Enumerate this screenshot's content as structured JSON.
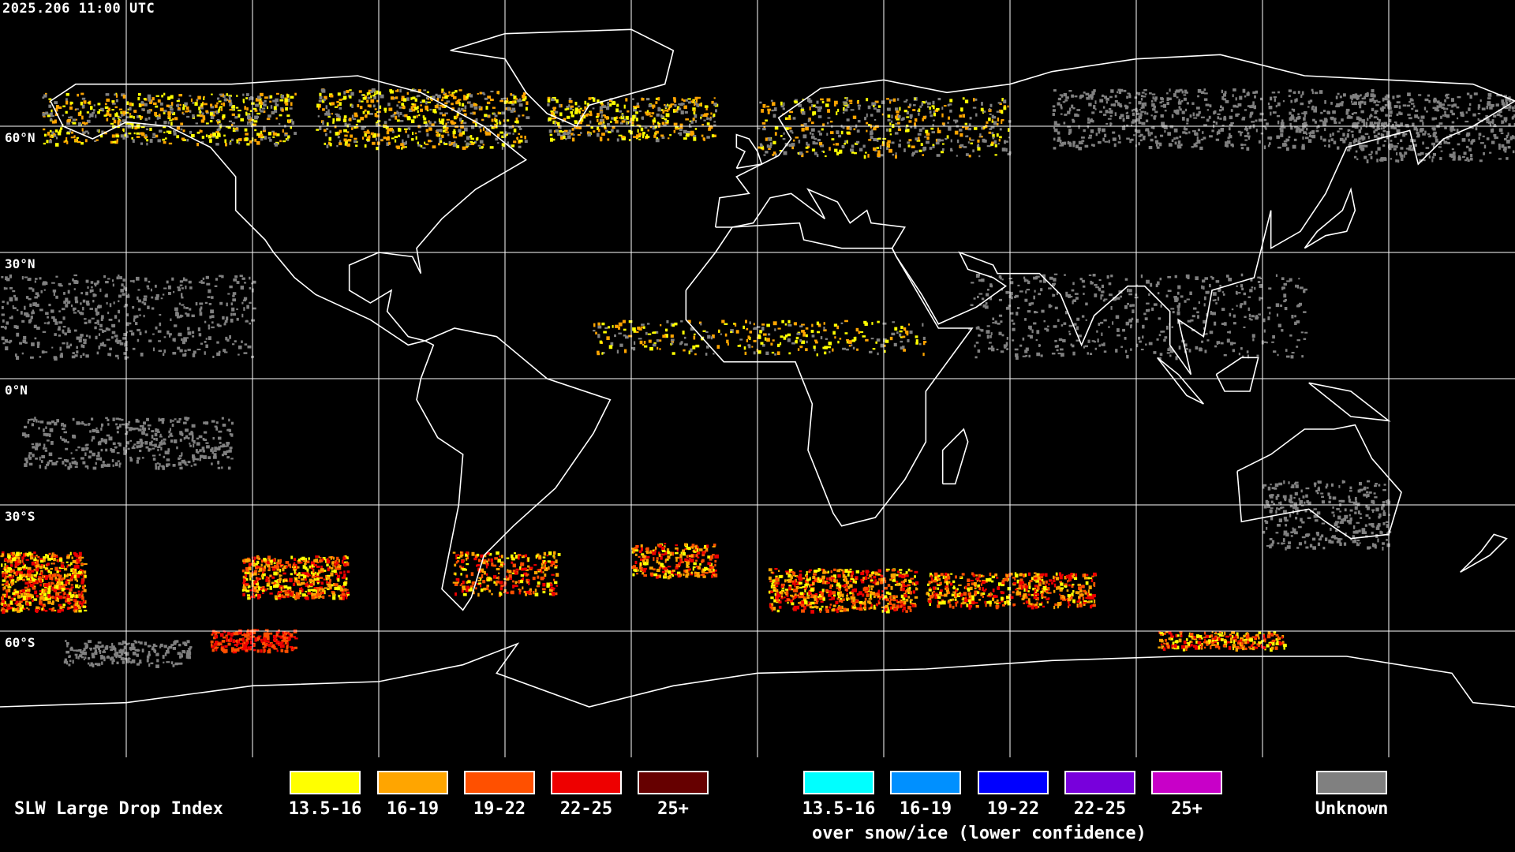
{
  "header": {
    "timestamp": "2025.206 11:00 UTC"
  },
  "map": {
    "projection": "equirectangular",
    "lat_labels": [
      "60°N",
      "30°N",
      "0°N",
      "30°S",
      "60°S"
    ],
    "grid_spacing_deg": 30,
    "colors": {
      "background": "#000000",
      "coastline": "#ffffff",
      "grid": "#ffffff"
    }
  },
  "legend": {
    "title": "SLW Large Drop Index",
    "main": [
      {
        "label": "13.5-16",
        "color": "#ffff00"
      },
      {
        "label": "16-19",
        "color": "#ffa500"
      },
      {
        "label": "19-22",
        "color": "#ff5000"
      },
      {
        "label": "22-25",
        "color": "#ee0000"
      },
      {
        "label": "25+",
        "color": "#660000"
      }
    ],
    "snow": [
      {
        "label": "13.5-16",
        "color": "#00ffff"
      },
      {
        "label": "16-19",
        "color": "#0090ff"
      },
      {
        "label": "19-22",
        "color": "#0000ff"
      },
      {
        "label": "22-25",
        "color": "#7800dc"
      },
      {
        "label": "25+",
        "color": "#c800c8"
      }
    ],
    "snow_caption": "over snow/ice (lower confidence)",
    "unknown": {
      "label": "Unknown",
      "color": "#808080"
    }
  }
}
